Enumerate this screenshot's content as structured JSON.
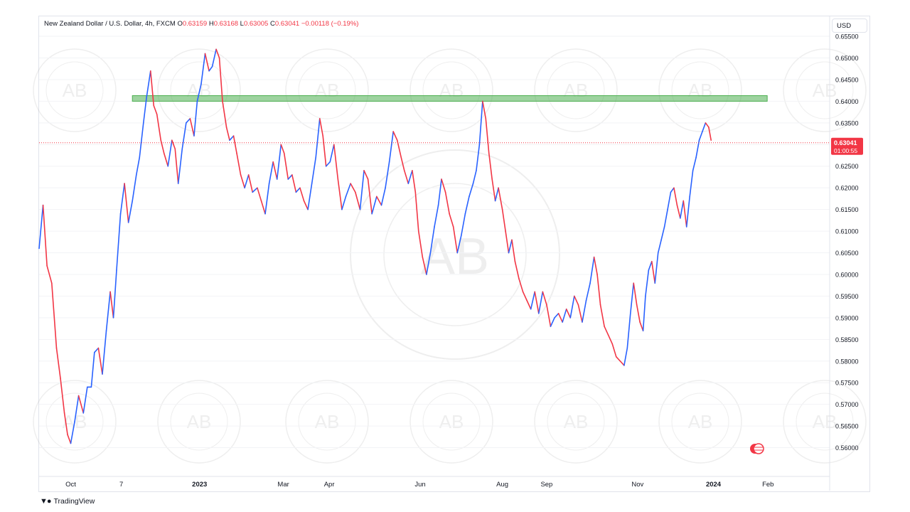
{
  "legend": {
    "symbol": "New Zealand Dollar / U.S. Dollar, 4h, FXCM",
    "open_label": "O",
    "open": "0.63159",
    "high_label": "H",
    "high": "0.63168",
    "low_label": "L",
    "low": "0.63005",
    "close_label": "C",
    "close": "0.63041",
    "change": "−0.00118 (−0.19%)"
  },
  "currency": "USD",
  "price_tag": {
    "price": "0.63041",
    "countdown": "01:00:55"
  },
  "footer": {
    "brand": "TradingView"
  },
  "colors": {
    "up": "#2962ff",
    "down": "#f23645",
    "zone": "#4caf50",
    "accent": "#f23645"
  },
  "chart_data": {
    "type": "line",
    "ylim": [
      0.555,
      0.6555
    ],
    "y_ticks": [
      "0.65500",
      "0.65000",
      "0.64500",
      "0.64000",
      "0.63500",
      "0.63000",
      "0.62500",
      "0.62000",
      "0.61500",
      "0.61000",
      "0.60500",
      "0.60000",
      "0.59500",
      "0.59000",
      "0.58500",
      "0.58000",
      "0.57500",
      "0.57000",
      "0.56500",
      "0.56000"
    ],
    "x_ticks": [
      "Oct",
      "7",
      "2023",
      "Mar",
      "Apr",
      "Jun",
      "Aug",
      "Sep",
      "Nov",
      "2024",
      "Feb"
    ],
    "x_tick_fracs": [
      0.04,
      0.104,
      0.203,
      0.309,
      0.367,
      0.482,
      0.586,
      0.642,
      0.757,
      0.853,
      0.922
    ],
    "last_price": 0.63041,
    "zone": {
      "low": 0.64,
      "high": 0.6413,
      "from_frac": 0.118,
      "to_frac": 0.921
    },
    "series": [
      {
        "points": [
          [
            0.0,
            0.606
          ],
          [
            0.005,
            0.616
          ],
          [
            0.01,
            0.602
          ],
          [
            0.016,
            0.598
          ],
          [
            0.022,
            0.583
          ],
          [
            0.027,
            0.576
          ],
          [
            0.032,
            0.568
          ],
          [
            0.036,
            0.563
          ],
          [
            0.04,
            0.561
          ],
          [
            0.045,
            0.566
          ],
          [
            0.05,
            0.572
          ],
          [
            0.056,
            0.568
          ],
          [
            0.061,
            0.574
          ],
          [
            0.066,
            0.574
          ],
          [
            0.07,
            0.582
          ],
          [
            0.075,
            0.583
          ],
          [
            0.08,
            0.577
          ],
          [
            0.085,
            0.587
          ],
          [
            0.09,
            0.596
          ],
          [
            0.094,
            0.59
          ],
          [
            0.098,
            0.601
          ],
          [
            0.103,
            0.614
          ],
          [
            0.108,
            0.621
          ],
          [
            0.113,
            0.612
          ],
          [
            0.118,
            0.617
          ],
          [
            0.123,
            0.623
          ],
          [
            0.127,
            0.627
          ],
          [
            0.132,
            0.635
          ],
          [
            0.136,
            0.641
          ],
          [
            0.141,
            0.647
          ],
          [
            0.145,
            0.639
          ],
          [
            0.149,
            0.637
          ],
          [
            0.154,
            0.631
          ],
          [
            0.158,
            0.628
          ],
          [
            0.163,
            0.625
          ],
          [
            0.168,
            0.631
          ],
          [
            0.172,
            0.629
          ],
          [
            0.176,
            0.621
          ],
          [
            0.181,
            0.629
          ],
          [
            0.186,
            0.635
          ],
          [
            0.191,
            0.636
          ],
          [
            0.196,
            0.632
          ],
          [
            0.2,
            0.64
          ],
          [
            0.205,
            0.644
          ],
          [
            0.21,
            0.651
          ],
          [
            0.215,
            0.647
          ],
          [
            0.219,
            0.648
          ],
          [
            0.224,
            0.652
          ],
          [
            0.228,
            0.65
          ],
          [
            0.232,
            0.64
          ],
          [
            0.237,
            0.634
          ],
          [
            0.241,
            0.631
          ],
          [
            0.246,
            0.632
          ],
          [
            0.25,
            0.628
          ],
          [
            0.255,
            0.623
          ],
          [
            0.26,
            0.62
          ],
          [
            0.265,
            0.623
          ],
          [
            0.27,
            0.619
          ],
          [
            0.276,
            0.62
          ],
          [
            0.281,
            0.617
          ],
          [
            0.286,
            0.614
          ],
          [
            0.291,
            0.621
          ],
          [
            0.296,
            0.626
          ],
          [
            0.301,
            0.622
          ],
          [
            0.306,
            0.63
          ],
          [
            0.31,
            0.628
          ],
          [
            0.315,
            0.622
          ],
          [
            0.32,
            0.623
          ],
          [
            0.325,
            0.619
          ],
          [
            0.33,
            0.62
          ],
          [
            0.335,
            0.617
          ],
          [
            0.34,
            0.615
          ],
          [
            0.345,
            0.621
          ],
          [
            0.35,
            0.627
          ],
          [
            0.355,
            0.636
          ],
          [
            0.359,
            0.632
          ],
          [
            0.363,
            0.625
          ],
          [
            0.368,
            0.626
          ],
          [
            0.373,
            0.63
          ],
          [
            0.378,
            0.622
          ],
          [
            0.383,
            0.615
          ],
          [
            0.388,
            0.618
          ],
          [
            0.394,
            0.621
          ],
          [
            0.4,
            0.619
          ],
          [
            0.406,
            0.615
          ],
          [
            0.411,
            0.624
          ],
          [
            0.416,
            0.622
          ],
          [
            0.421,
            0.614
          ],
          [
            0.427,
            0.618
          ],
          [
            0.433,
            0.616
          ],
          [
            0.438,
            0.62
          ],
          [
            0.443,
            0.626
          ],
          [
            0.448,
            0.633
          ],
          [
            0.453,
            0.631
          ],
          [
            0.458,
            0.627
          ],
          [
            0.462,
            0.624
          ],
          [
            0.467,
            0.621
          ],
          [
            0.472,
            0.624
          ],
          [
            0.476,
            0.619
          ],
          [
            0.48,
            0.61
          ],
          [
            0.485,
            0.604
          ],
          [
            0.49,
            0.6
          ],
          [
            0.495,
            0.605
          ],
          [
            0.5,
            0.611
          ],
          [
            0.505,
            0.616
          ],
          [
            0.509,
            0.622
          ],
          [
            0.514,
            0.619
          ],
          [
            0.519,
            0.614
          ],
          [
            0.524,
            0.611
          ],
          [
            0.529,
            0.605
          ],
          [
            0.534,
            0.609
          ],
          [
            0.539,
            0.614
          ],
          [
            0.544,
            0.618
          ],
          [
            0.549,
            0.621
          ],
          [
            0.553,
            0.624
          ],
          [
            0.557,
            0.63
          ],
          [
            0.561,
            0.64
          ],
          [
            0.565,
            0.636
          ],
          [
            0.569,
            0.628
          ],
          [
            0.573,
            0.622
          ],
          [
            0.577,
            0.617
          ],
          [
            0.581,
            0.62
          ],
          [
            0.586,
            0.615
          ],
          [
            0.59,
            0.61
          ],
          [
            0.594,
            0.605
          ],
          [
            0.598,
            0.608
          ],
          [
            0.602,
            0.603
          ],
          [
            0.607,
            0.599
          ],
          [
            0.612,
            0.596
          ],
          [
            0.617,
            0.594
          ],
          [
            0.622,
            0.592
          ],
          [
            0.627,
            0.596
          ],
          [
            0.632,
            0.591
          ],
          [
            0.637,
            0.596
          ],
          [
            0.642,
            0.593
          ],
          [
            0.647,
            0.588
          ],
          [
            0.652,
            0.59
          ],
          [
            0.657,
            0.591
          ],
          [
            0.662,
            0.589
          ],
          [
            0.667,
            0.592
          ],
          [
            0.672,
            0.59
          ],
          [
            0.677,
            0.595
          ],
          [
            0.682,
            0.593
          ],
          [
            0.687,
            0.589
          ],
          [
            0.692,
            0.594
          ],
          [
            0.697,
            0.598
          ],
          [
            0.702,
            0.604
          ],
          [
            0.706,
            0.6
          ],
          [
            0.71,
            0.593
          ],
          [
            0.715,
            0.588
          ],
          [
            0.72,
            0.586
          ],
          [
            0.725,
            0.584
          ],
          [
            0.73,
            0.581
          ],
          [
            0.735,
            0.58
          ],
          [
            0.74,
            0.579
          ],
          [
            0.744,
            0.583
          ],
          [
            0.748,
            0.591
          ],
          [
            0.752,
            0.598
          ],
          [
            0.756,
            0.593
          ],
          [
            0.76,
            0.589
          ],
          [
            0.764,
            0.587
          ],
          [
            0.767,
            0.595
          ],
          [
            0.771,
            0.601
          ],
          [
            0.775,
            0.603
          ],
          [
            0.779,
            0.598
          ],
          [
            0.783,
            0.605
          ],
          [
            0.787,
            0.608
          ],
          [
            0.791,
            0.611
          ],
          [
            0.795,
            0.615
          ],
          [
            0.799,
            0.619
          ],
          [
            0.803,
            0.62
          ],
          [
            0.807,
            0.616
          ],
          [
            0.811,
            0.613
          ],
          [
            0.815,
            0.617
          ],
          [
            0.819,
            0.611
          ],
          [
            0.823,
            0.618
          ],
          [
            0.827,
            0.624
          ],
          [
            0.831,
            0.627
          ],
          [
            0.835,
            0.631
          ],
          [
            0.839,
            0.633
          ],
          [
            0.843,
            0.635
          ],
          [
            0.847,
            0.634
          ],
          [
            0.85,
            0.631
          ]
        ]
      }
    ]
  }
}
